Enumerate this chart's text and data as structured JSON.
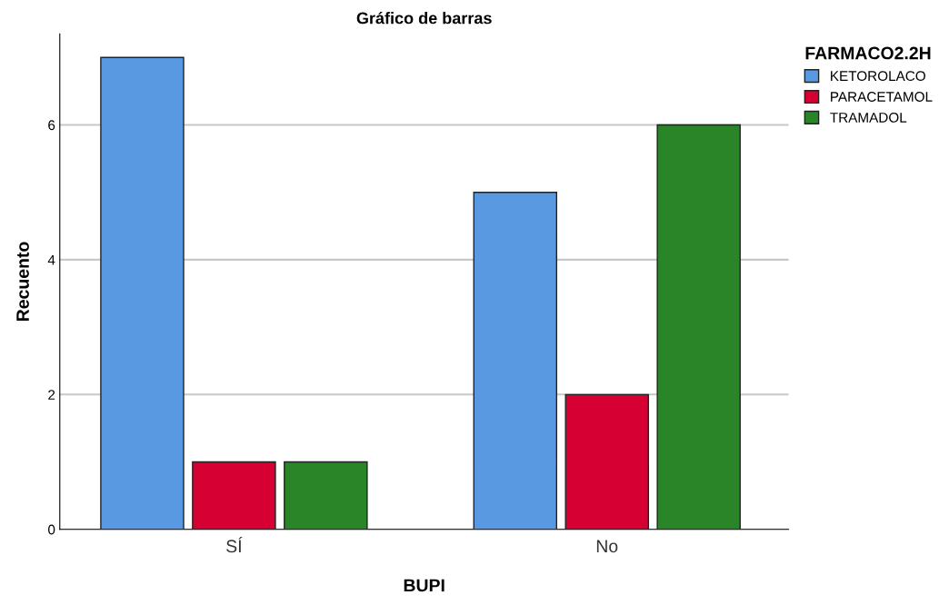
{
  "chart_data": {
    "type": "bar",
    "title": "Gráfico de barras",
    "xlabel": "BUPI",
    "ylabel": "Recuento",
    "legend_title": "FARMACO2.2H",
    "categories": [
      "SÍ",
      "No"
    ],
    "series": [
      {
        "name": "KETOROLACO",
        "color": "#5899e2",
        "values": [
          7,
          5
        ]
      },
      {
        "name": "PARACETAMOL",
        "color": "#d60032",
        "values": [
          1,
          2
        ]
      },
      {
        "name": "TRAMADOL",
        "color": "#2a8428",
        "values": [
          1,
          6
        ]
      }
    ],
    "ylim": [
      0,
      7.35
    ],
    "yticks": [
      0,
      2,
      4,
      6
    ],
    "grid": "y",
    "legend": "top right"
  }
}
